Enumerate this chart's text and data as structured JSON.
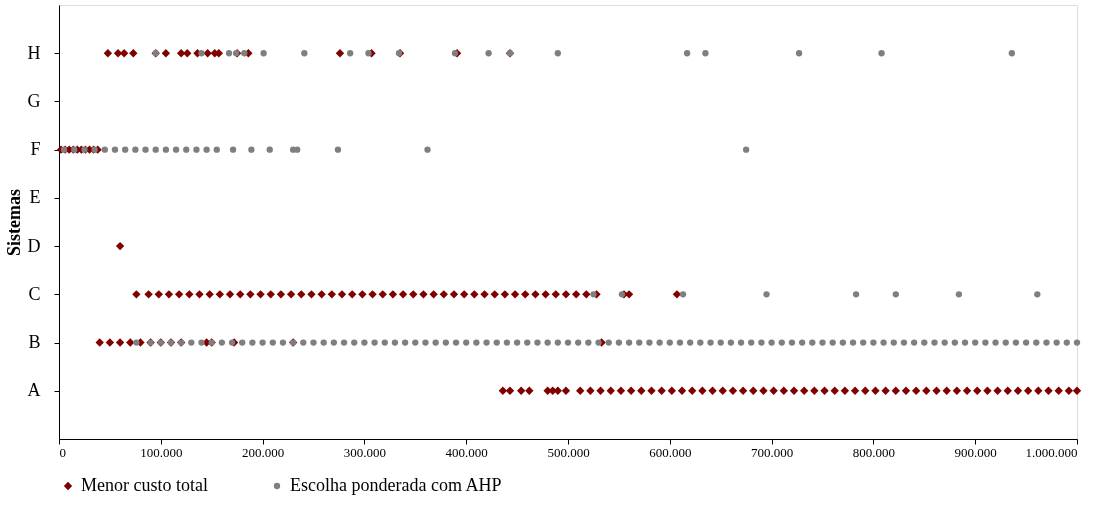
{
  "chart_data": {
    "type": "scatter",
    "orientation": "horizontal",
    "ylabel": "Sistemas",
    "legend": "bottom",
    "grid": false,
    "xlim": [
      0,
      1000000
    ],
    "xticks": [
      0,
      {
        "value": 100000,
        "label": "100.000"
      },
      {
        "value": 200000,
        "label": "200.000"
      },
      {
        "value": 300000,
        "label": "300.000"
      },
      {
        "value": 400000,
        "label": "400.000"
      },
      {
        "value": 500000,
        "label": "500.000"
      },
      {
        "value": 600000,
        "label": "600.000"
      },
      {
        "value": 700000,
        "label": "700.000"
      },
      {
        "value": 800000,
        "label": "800.000"
      },
      {
        "value": 900000,
        "label": "900.000"
      },
      {
        "value": 1000000,
        "label": "1.000.000"
      }
    ],
    "categories": [
      "H",
      "G",
      "F",
      "E",
      "D",
      "C",
      "B",
      "A"
    ],
    "series": [
      {
        "name": "Menor custo total",
        "color": "#800000",
        "marker": "diamond",
        "values": [
          48000,
          58000,
          64000,
          73000,
          95000,
          105000,
          120000,
          126000,
          136000,
          146000,
          153000,
          157000,
          175000,
          186000,
          276000,
          307000,
          335000,
          391000,
          443000,
          2000,
          6000,
          10000,
          14000,
          18000,
          22000,
          26000,
          30000,
          34000,
          38000,
          60000,
          76000,
          88000,
          98000,
          108000,
          118000,
          128000,
          138000,
          148000,
          158000,
          168000,
          178000,
          188000,
          198000,
          208000,
          218000,
          228000,
          238000,
          248000,
          258000,
          268000,
          278000,
          288000,
          298000,
          308000,
          318000,
          328000,
          338000,
          348000,
          358000,
          368000,
          378000,
          388000,
          398000,
          408000,
          418000,
          428000,
          438000,
          448000,
          458000,
          468000,
          478000,
          488000,
          498000,
          508000,
          518000,
          528000,
          555000,
          560000,
          607000,
          40000,
          50000,
          60000,
          70000,
          80000,
          90000,
          100000,
          110000,
          120000,
          145000,
          150000,
          172000,
          230000,
          533000,
          436000,
          443000,
          454000,
          462000,
          480000,
          485000,
          490000,
          498000,
          512000,
          522000,
          532000,
          542000,
          552000,
          562000,
          572000,
          582000,
          592000,
          602000,
          612000,
          622000,
          632000,
          642000,
          652000,
          662000,
          672000,
          682000,
          692000,
          702000,
          712000,
          722000,
          732000,
          742000,
          752000,
          762000,
          772000,
          782000,
          792000,
          802000,
          812000,
          822000,
          832000,
          842000,
          852000,
          862000,
          872000,
          882000,
          892000,
          902000,
          912000,
          922000,
          932000,
          942000,
          952000,
          962000,
          972000,
          982000,
          992000,
          1000000
        ],
        "x": [
          "H",
          "H",
          "H",
          "H",
          "H",
          "H",
          "H",
          "H",
          "H",
          "H",
          "H",
          "H",
          "H",
          "H",
          "H",
          "H",
          "H",
          "H",
          "H",
          "F",
          "F",
          "F",
          "F",
          "F",
          "F",
          "F",
          "F",
          "F",
          "F",
          "D",
          "C",
          "C",
          "C",
          "C",
          "C",
          "C",
          "C",
          "C",
          "C",
          "C",
          "C",
          "C",
          "C",
          "C",
          "C",
          "C",
          "C",
          "C",
          "C",
          "C",
          "C",
          "C",
          "C",
          "C",
          "C",
          "C",
          "C",
          "C",
          "C",
          "C",
          "C",
          "C",
          "C",
          "C",
          "C",
          "C",
          "C",
          "C",
          "C",
          "C",
          "C",
          "C",
          "C",
          "C",
          "C",
          "C",
          "C",
          "C",
          "C",
          "B",
          "B",
          "B",
          "B",
          "B",
          "B",
          "B",
          "B",
          "B",
          "B",
          "B",
          "B",
          "B",
          "B",
          "A",
          "A",
          "A",
          "A",
          "A",
          "A",
          "A",
          "A",
          "A",
          "A",
          "A",
          "A",
          "A",
          "A",
          "A",
          "A",
          "A",
          "A",
          "A",
          "A",
          "A",
          "A",
          "A",
          "A",
          "A",
          "A",
          "A",
          "A",
          "A",
          "A",
          "A",
          "A",
          "A",
          "A",
          "A",
          "A",
          "A",
          "A",
          "A",
          "A",
          "A",
          "A",
          "A",
          "A",
          "A",
          "A",
          "A",
          "A",
          "A",
          "A",
          "A",
          "A",
          "A",
          "A",
          "A",
          "A",
          "A",
          "A"
        ]
      },
      {
        "name": "Escolha ponderada com AHP",
        "color": "#7f7f7f",
        "marker": "circle",
        "values": [
          95000,
          140000,
          167000,
          174000,
          182000,
          201000,
          241000,
          286000,
          304000,
          334000,
          389000,
          422000,
          443000,
          490000,
          617000,
          635000,
          727000,
          808000,
          936000,
          5000,
          15000,
          25000,
          35000,
          45000,
          55000,
          65000,
          75000,
          85000,
          95000,
          105000,
          115000,
          125000,
          135000,
          145000,
          155000,
          171000,
          189000,
          207000,
          230000,
          234000,
          274000,
          362000,
          675000,
          525000,
          553000,
          613000,
          695000,
          783000,
          822000,
          884000,
          961000,
          76000,
          90000,
          100000,
          110000,
          120000,
          130000,
          140000,
          150000,
          160000,
          170000,
          180000,
          190000,
          200000,
          210000,
          220000,
          230000,
          240000,
          250000,
          260000,
          270000,
          280000,
          290000,
          300000,
          310000,
          320000,
          330000,
          340000,
          350000,
          360000,
          370000,
          380000,
          390000,
          400000,
          410000,
          420000,
          430000,
          440000,
          450000,
          460000,
          470000,
          480000,
          490000,
          500000,
          510000,
          520000,
          530000,
          540000,
          550000,
          560000,
          570000,
          580000,
          590000,
          600000,
          610000,
          620000,
          630000,
          640000,
          650000,
          660000,
          670000,
          680000,
          690000,
          700000,
          710000,
          720000,
          730000,
          740000,
          750000,
          760000,
          770000,
          780000,
          790000,
          800000,
          810000,
          820000,
          830000,
          840000,
          850000,
          860000,
          870000,
          880000,
          890000,
          900000,
          910000,
          920000,
          930000,
          940000,
          950000,
          960000,
          970000,
          980000,
          990000,
          1000000
        ],
        "x": [
          "H",
          "H",
          "H",
          "H",
          "H",
          "H",
          "H",
          "H",
          "H",
          "H",
          "H",
          "H",
          "H",
          "H",
          "H",
          "H",
          "H",
          "H",
          "H",
          "F",
          "F",
          "F",
          "F",
          "F",
          "F",
          "F",
          "F",
          "F",
          "F",
          "F",
          "F",
          "F",
          "F",
          "F",
          "F",
          "F",
          "F",
          "F",
          "F",
          "F",
          "F",
          "F",
          "F",
          "C",
          "C",
          "C",
          "C",
          "C",
          "C",
          "C",
          "C",
          "B",
          "B",
          "B",
          "B",
          "B",
          "B",
          "B",
          "B",
          "B",
          "B",
          "B",
          "B",
          "B",
          "B",
          "B",
          "B",
          "B",
          "B",
          "B",
          "B",
          "B",
          "B",
          "B",
          "B",
          "B",
          "B",
          "B",
          "B",
          "B",
          "B",
          "B",
          "B",
          "B",
          "B",
          "B",
          "B",
          "B",
          "B",
          "B",
          "B",
          "B",
          "B",
          "B",
          "B",
          "B",
          "B",
          "B",
          "B",
          "B",
          "B",
          "B",
          "B",
          "B",
          "B",
          "B",
          "B",
          "B",
          "B",
          "B",
          "B",
          "B",
          "B",
          "B",
          "B",
          "B",
          "B",
          "B",
          "B",
          "B",
          "B",
          "B",
          "B",
          "B",
          "B",
          "B",
          "B",
          "B",
          "B",
          "B",
          "B",
          "B",
          "B",
          "B",
          "B",
          "B",
          "B",
          "B",
          "B",
          "B",
          "B",
          "B",
          "B",
          "B"
        ]
      }
    ]
  }
}
